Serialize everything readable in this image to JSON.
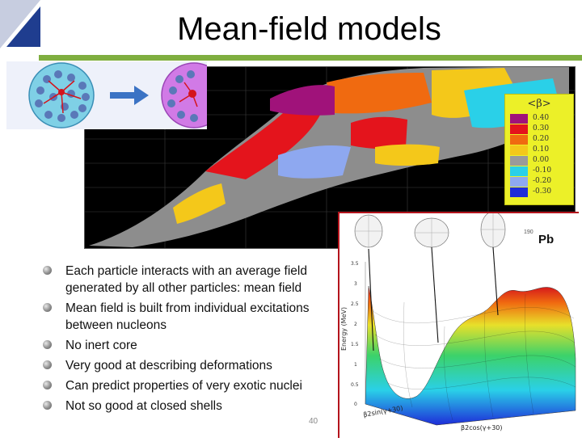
{
  "slide": {
    "title": "Mean-field models",
    "number": "40"
  },
  "bullets": [
    "Each particle interacts with an average field generated by all other particles: mean field",
    "Mean field is built from individual excitations between nucleons",
    "No inert core",
    "Very good at describing deformations",
    "Can predict properties of very exotic nuclei",
    "Not so good at closed shells"
  ],
  "deformation_legend": {
    "title": "<β>",
    "entries": [
      {
        "label": "0.40",
        "color": "#a0127a"
      },
      {
        "label": "0.30",
        "color": "#e4141c"
      },
      {
        "label": "0.20",
        "color": "#f06a10"
      },
      {
        "label": "0.10",
        "color": "#f4c81a"
      },
      {
        "label": "0.00",
        "color": "#9a9a9a"
      },
      {
        "label": "-0.10",
        "color": "#2ad0e8"
      },
      {
        "label": "-0.20",
        "color": "#8ea8f0"
      },
      {
        "label": "-0.30",
        "color": "#1e2cd8"
      }
    ]
  },
  "energy_surface": {
    "nucleus": "Pb",
    "mass_superscript": "190",
    "z_axis_label": "Energy (MeV)",
    "z_ticks": [
      "0",
      "0.5",
      "1",
      "1.5",
      "2",
      "2.5",
      "3",
      "3.5"
    ],
    "x_label_left": "β2sin(γ+30)",
    "x_label_right": "β2cos(γ+30)"
  },
  "colors": {
    "accent_rule": "#7fae3f",
    "corner_blue": "#1f3d8f",
    "inset_border": "#b4141c"
  }
}
